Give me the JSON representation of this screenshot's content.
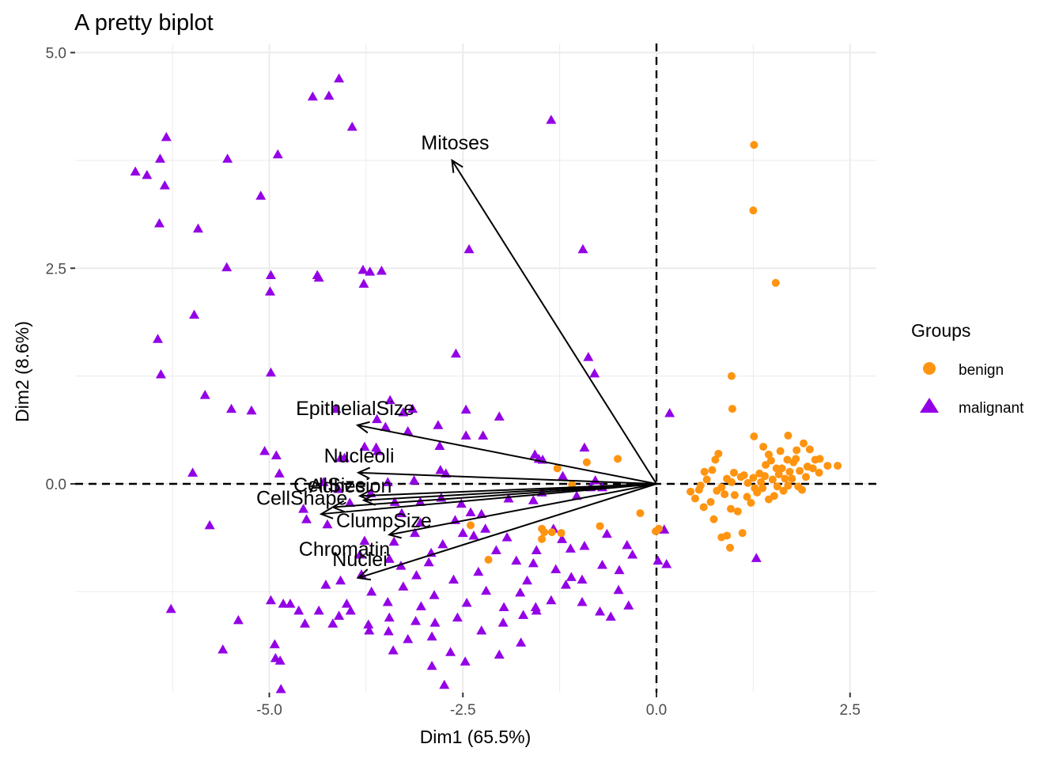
{
  "chart_data": {
    "type": "scatter",
    "title": "A pretty biplot",
    "xlabel": "Dim1 (65.5%)",
    "ylabel": "Dim2 (8.6%)",
    "xlim": [
      -7.2,
      2.95
    ],
    "ylim": [
      -2.4,
      5.1
    ],
    "x_ticks": [
      -5.0,
      -2.5,
      0.0,
      2.5
    ],
    "x_tick_labels": [
      "-5.0",
      "-2.5",
      "0.0",
      "2.5"
    ],
    "y_ticks": [
      0.0,
      2.5,
      5.0
    ],
    "y_tick_labels": [
      "0.0",
      "2.5",
      "5.0"
    ],
    "grid": true,
    "reference_lines": {
      "x": 0,
      "y": 0,
      "style": "dashed"
    },
    "legend": {
      "title": "Groups",
      "position": "right",
      "entries": [
        {
          "label": "benign",
          "color": "#FF9410",
          "shape": "circle"
        },
        {
          "label": "malignant",
          "color": "#9400E6",
          "shape": "triangle"
        }
      ]
    },
    "series": [
      {
        "name": "malignant",
        "color": "#9400E6",
        "shape": "triangle",
        "points": [
          [
            -4.1,
            4.7
          ],
          [
            -4.44,
            4.49
          ],
          [
            -4.23,
            4.5
          ],
          [
            -3.93,
            4.14
          ],
          [
            -1.36,
            4.22
          ],
          [
            -6.33,
            4.02
          ],
          [
            -5.54,
            3.77
          ],
          [
            -4.89,
            3.82
          ],
          [
            -6.73,
            3.62
          ],
          [
            -6.58,
            3.58
          ],
          [
            -6.41,
            3.77
          ],
          [
            -6.35,
            3.46
          ],
          [
            -5.11,
            3.34
          ],
          [
            -6.42,
            3.02
          ],
          [
            -5.92,
            2.96
          ],
          [
            -2.42,
            2.72
          ],
          [
            -0.95,
            2.72
          ],
          [
            -5.55,
            2.51
          ],
          [
            -4.98,
            2.42
          ],
          [
            -4.38,
            2.42
          ],
          [
            -4.36,
            2.39
          ],
          [
            -3.79,
            2.48
          ],
          [
            -3.7,
            2.46
          ],
          [
            -3.55,
            2.47
          ],
          [
            -3.78,
            2.32
          ],
          [
            -4.99,
            2.23
          ],
          [
            -6.44,
            1.68
          ],
          [
            -5.97,
            1.96
          ],
          [
            -6.4,
            1.27
          ],
          [
            -4.98,
            1.29
          ],
          [
            -2.59,
            1.51
          ],
          [
            -0.88,
            1.47
          ],
          [
            -0.8,
            1.28
          ],
          [
            -5.83,
            1.03
          ],
          [
            -5.49,
            0.87
          ],
          [
            -5.23,
            0.85
          ],
          [
            -4.14,
            0.87
          ],
          [
            -3.44,
            0.97
          ],
          [
            -3.15,
            0.87
          ],
          [
            -3.27,
            0.83
          ],
          [
            -2.46,
            0.86
          ],
          [
            -2.03,
            0.78
          ],
          [
            -3.61,
            0.75
          ],
          [
            -3.5,
            0.66
          ],
          [
            -3.21,
            0.61
          ],
          [
            -2.82,
            0.68
          ],
          [
            -2.46,
            0.56
          ],
          [
            -2.8,
            0.44
          ],
          [
            -2.24,
            0.56
          ],
          [
            0.17,
            0.82
          ],
          [
            -0.93,
            0.42
          ],
          [
            -1.57,
            0.34
          ],
          [
            -1.52,
            0.29
          ],
          [
            -1.47,
            0.28
          ],
          [
            -5.06,
            0.38
          ],
          [
            -4.91,
            0.33
          ],
          [
            -4.08,
            0.3
          ],
          [
            -4.03,
            0.3
          ],
          [
            -3.77,
            0.43
          ],
          [
            -3.6,
            0.38
          ],
          [
            -3.62,
            0.42
          ],
          [
            -5.99,
            0.13
          ],
          [
            -4.87,
            0.12
          ],
          [
            -3.47,
            0.02
          ],
          [
            -3.13,
            0.04
          ],
          [
            -2.72,
            0.12
          ],
          [
            -2.79,
            0.16
          ],
          [
            -1.21,
            0.09
          ],
          [
            -0.79,
            0.04
          ],
          [
            -4.56,
            -0.29
          ],
          [
            -4.3,
            0.02
          ],
          [
            -4.11,
            -0.06
          ],
          [
            -3.96,
            -0.22
          ],
          [
            -3.69,
            -0.11
          ],
          [
            -3.38,
            -0.21
          ],
          [
            -3.29,
            -0.34
          ],
          [
            -3.05,
            -0.21
          ],
          [
            -2.78,
            -0.16
          ],
          [
            -2.52,
            -0.23
          ],
          [
            -2.26,
            -0.35
          ],
          [
            -1.59,
            -0.19
          ],
          [
            -1.48,
            -0.1
          ],
          [
            -1.03,
            -0.14
          ],
          [
            -0.85,
            -0.04
          ],
          [
            -0.7,
            -0.04
          ],
          [
            -5.77,
            -0.48
          ],
          [
            -4.52,
            -0.41
          ],
          [
            -4.25,
            -0.47
          ],
          [
            -3.77,
            -0.66
          ],
          [
            -3.39,
            -0.67
          ],
          [
            -3.12,
            -0.57
          ],
          [
            -2.91,
            -0.8
          ],
          [
            -2.76,
            -0.7
          ],
          [
            -2.5,
            -0.57
          ],
          [
            -2.36,
            -0.6
          ],
          [
            -2.21,
            -0.52
          ],
          [
            -2.07,
            -0.77
          ],
          [
            -1.93,
            -0.62
          ],
          [
            -1.81,
            -0.89
          ],
          [
            -1.59,
            -0.92
          ],
          [
            -1.33,
            -0.52
          ],
          [
            -1.11,
            -0.75
          ],
          [
            -0.93,
            -0.72
          ],
          [
            -0.7,
            -0.94
          ],
          [
            -0.48,
            -1.0
          ],
          [
            -0.31,
            -0.82
          ],
          [
            0.1,
            -0.53
          ],
          [
            0.02,
            -0.89
          ],
          [
            0.13,
            -0.93
          ],
          [
            1.29,
            -0.86
          ],
          [
            -4.27,
            -1.17
          ],
          [
            -4.08,
            -1.12
          ],
          [
            -3.81,
            -1.05
          ],
          [
            -3.68,
            -1.25
          ],
          [
            -3.47,
            -1.37
          ],
          [
            -3.27,
            -1.19
          ],
          [
            -3.1,
            -1.06
          ],
          [
            -2.87,
            -1.29
          ],
          [
            -2.62,
            -1.11
          ],
          [
            -2.45,
            -1.38
          ],
          [
            -2.2,
            -1.24
          ],
          [
            -1.97,
            -1.43
          ],
          [
            -1.76,
            -1.26
          ],
          [
            -1.55,
            -1.47
          ],
          [
            -1.36,
            -1.35
          ],
          [
            -1.17,
            -1.17
          ],
          [
            -0.96,
            -1.37
          ],
          [
            -0.73,
            -1.48
          ],
          [
            -0.49,
            -1.23
          ],
          [
            -0.36,
            -1.41
          ],
          [
            -5.4,
            -1.58
          ],
          [
            -4.98,
            -1.35
          ],
          [
            -4.82,
            -1.39
          ],
          [
            -4.62,
            -1.47
          ],
          [
            -4.36,
            -1.47
          ],
          [
            -4.1,
            -1.53
          ],
          [
            -3.95,
            -1.47
          ],
          [
            -3.72,
            -1.63
          ],
          [
            -3.45,
            -1.55
          ],
          [
            -3.11,
            -1.59
          ],
          [
            -2.86,
            -1.61
          ],
          [
            -2.57,
            -1.55
          ],
          [
            -2.26,
            -1.7
          ],
          [
            -1.98,
            -1.61
          ],
          [
            -1.72,
            -1.52
          ],
          [
            -1.56,
            -1.43
          ],
          [
            -6.27,
            -1.45
          ],
          [
            -4.73,
            -1.39
          ],
          [
            -4.54,
            -1.62
          ],
          [
            -4.18,
            -1.62
          ],
          [
            -3.71,
            -1.7
          ],
          [
            -3.46,
            -1.71
          ],
          [
            -3.21,
            -1.8
          ],
          [
            -2.9,
            -1.77
          ],
          [
            -5.6,
            -1.92
          ],
          [
            -4.93,
            -1.86
          ],
          [
            -3.4,
            -1.93
          ],
          [
            -2.9,
            -2.11
          ],
          [
            -4.86,
            -2.05
          ],
          [
            -2.66,
            -1.95
          ],
          [
            -2.03,
            -1.98
          ],
          [
            -1.75,
            -1.84
          ],
          [
            -4.92,
            -2.02
          ],
          [
            -2.74,
            -2.33
          ],
          [
            -4.85,
            -2.38
          ],
          [
            -2.47,
            -2.06
          ],
          [
            -4.0,
            -1.39
          ],
          [
            -3.04,
            -1.42
          ],
          [
            -1.1,
            -1.08
          ],
          [
            -0.59,
            -1.54
          ],
          [
            -3.3,
            -0.95
          ],
          [
            -2.94,
            -0.91
          ],
          [
            -2.3,
            -1.02
          ],
          [
            -1.67,
            -1.12
          ],
          [
            -1.3,
            -0.99
          ],
          [
            -0.96,
            -1.11
          ],
          [
            -2.4,
            -0.33
          ],
          [
            -1.91,
            -0.17
          ],
          [
            -3.83,
            -0.82
          ],
          [
            -3.45,
            -0.87
          ],
          [
            -3.05,
            -0.45
          ],
          [
            -2.6,
            -0.42
          ],
          [
            -1.55,
            -0.77
          ],
          [
            -1.22,
            -0.64
          ],
          [
            -0.64,
            -0.58
          ],
          [
            -0.38,
            -0.71
          ]
        ]
      },
      {
        "name": "benign",
        "color": "#FF9410",
        "shape": "circle",
        "points": [
          [
            1.26,
            3.93
          ],
          [
            1.25,
            3.17
          ],
          [
            1.54,
            2.33
          ],
          [
            0.97,
            1.25
          ],
          [
            0.98,
            0.87
          ],
          [
            -0.5,
            0.29
          ],
          [
            -0.9,
            0.25
          ],
          [
            -1.28,
            0.18
          ],
          [
            -1.09,
            -0.01
          ],
          [
            0.03,
            -0.52
          ],
          [
            -0.73,
            -0.49
          ],
          [
            -0.01,
            -0.55
          ],
          [
            -1.45,
            -0.56
          ],
          [
            -1.48,
            -0.52
          ],
          [
            -1.35,
            -0.56
          ],
          [
            -1.48,
            -0.64
          ],
          [
            -1.23,
            -0.57
          ],
          [
            -2.17,
            -0.88
          ],
          [
            -2.4,
            -0.48
          ],
          [
            -0.21,
            -0.34
          ],
          [
            0.65,
            0.05
          ],
          [
            0.8,
            0.35
          ],
          [
            0.76,
            0.28
          ],
          [
            0.72,
            0.16
          ],
          [
            0.57,
            -0.02
          ],
          [
            0.55,
            -0.07
          ],
          [
            0.44,
            -0.09
          ],
          [
            0.5,
            -0.17
          ],
          [
            0.61,
            -0.27
          ],
          [
            0.74,
            -0.41
          ],
          [
            0.84,
            -0.62
          ],
          [
            0.96,
            -0.29
          ],
          [
            1.05,
            -0.32
          ],
          [
            0.91,
            -0.6
          ],
          [
            0.95,
            -0.74
          ],
          [
            1.11,
            -0.57
          ],
          [
            0.7,
            -0.21
          ],
          [
            0.84,
            -0.04
          ],
          [
            0.91,
            0.06
          ],
          [
            1.0,
            0.13
          ],
          [
            1.09,
            0.08
          ],
          [
            1.18,
            0.01
          ],
          [
            1.27,
            -0.05
          ],
          [
            1.33,
            0.12
          ],
          [
            1.41,
            0.22
          ],
          [
            1.5,
            0.05
          ],
          [
            1.56,
            -0.03
          ],
          [
            1.62,
            0.18
          ],
          [
            1.69,
            0.28
          ],
          [
            1.77,
            0.25
          ],
          [
            1.85,
            0.15
          ],
          [
            1.93,
            0.08
          ],
          [
            2.02,
            0.18
          ],
          [
            2.11,
            0.29
          ],
          [
            2.21,
            0.21
          ],
          [
            2.34,
            0.21
          ],
          [
            1.7,
            0.56
          ],
          [
            1.9,
            0.47
          ],
          [
            1.26,
            0.55
          ],
          [
            1.38,
            0.43
          ],
          [
            1.45,
            0.34
          ],
          [
            1.6,
            0.38
          ],
          [
            1.81,
            0.39
          ],
          [
            1.98,
            0.4
          ],
          [
            2.05,
            0.28
          ],
          [
            1.3,
            -0.1
          ],
          [
            1.45,
            -0.18
          ],
          [
            1.64,
            -0.08
          ],
          [
            1.83,
            -0.03
          ],
          [
            1.01,
            -0.13
          ],
          [
            1.17,
            -0.15
          ],
          [
            1.22,
            -0.22
          ],
          [
            1.37,
            -0.05
          ],
          [
            1.52,
            -0.14
          ],
          [
            1.7,
            -0.02
          ],
          [
            1.75,
            0.06
          ],
          [
            1.88,
            -0.07
          ],
          [
            1.35,
            0.02
          ],
          [
            1.58,
            0.11
          ],
          [
            1.72,
            0.14
          ],
          [
            1.95,
            0.2
          ],
          [
            2.1,
            0.13
          ],
          [
            1.25,
            0.07
          ],
          [
            1.4,
            0.09
          ],
          [
            1.55,
            0.18
          ],
          [
            0.88,
            -0.12
          ],
          [
            0.78,
            -0.08
          ],
          [
            0.62,
            0.14
          ],
          [
            0.97,
            0.02
          ],
          [
            1.13,
            0.1
          ],
          [
            1.48,
            0.27
          ],
          [
            1.66,
            0.06
          ],
          [
            1.8,
            0.29
          ]
        ]
      }
    ],
    "variables": [
      {
        "name": "Mitoses",
        "x": -2.64,
        "y": 3.75,
        "label_x": -2.6,
        "label_y": 3.96
      },
      {
        "name": "EpithelialSize",
        "x": -3.86,
        "y": 0.68,
        "label_x": -3.89,
        "label_y": 0.88
      },
      {
        "name": "Nucleoli",
        "x": -3.85,
        "y": 0.13,
        "label_x": -3.84,
        "label_y": 0.33
      },
      {
        "name": "CellSize",
        "x": -3.83,
        "y": -0.14,
        "label_x": -4.22,
        "label_y": -0.01
      },
      {
        "name": "Adhesion",
        "x": -3.78,
        "y": -0.19,
        "label_x": -3.95,
        "label_y": -0.02
      },
      {
        "name": "CellShape",
        "x": -4.18,
        "y": -0.27,
        "label_x": -4.58,
        "label_y": -0.16
      },
      {
        "name": "ClumpSize",
        "x": -4.33,
        "y": -0.35,
        "label_x": -3.52,
        "label_y": -0.42
      },
      {
        "name": "Chromatin",
        "x": -3.45,
        "y": -0.59,
        "label_x": -4.03,
        "label_y": -0.75
      },
      {
        "name": "Nuclei",
        "x": -3.85,
        "y": -1.09,
        "label_x": -3.83,
        "label_y": -0.87
      }
    ]
  }
}
